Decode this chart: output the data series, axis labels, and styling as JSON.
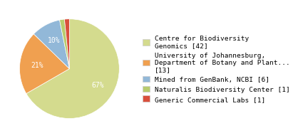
{
  "labels": [
    "Centre for Biodiversity\nGenomics [42]",
    "University of Johannesburg,\nDepartment of Botany and Plant...\n[13]",
    "Mined from GenBank, NCBI [6]",
    "Naturalis Biodiversity Center [1]",
    "Generic Commercial Labs [1]"
  ],
  "values": [
    42,
    13,
    6,
    1,
    1
  ],
  "colors": [
    "#d4db8e",
    "#f0a050",
    "#92b8d8",
    "#b8cc6e",
    "#d94f3c"
  ],
  "startangle": 90,
  "background_color": "#ffffff",
  "font_size": 7.0,
  "legend_font_size": 6.8
}
